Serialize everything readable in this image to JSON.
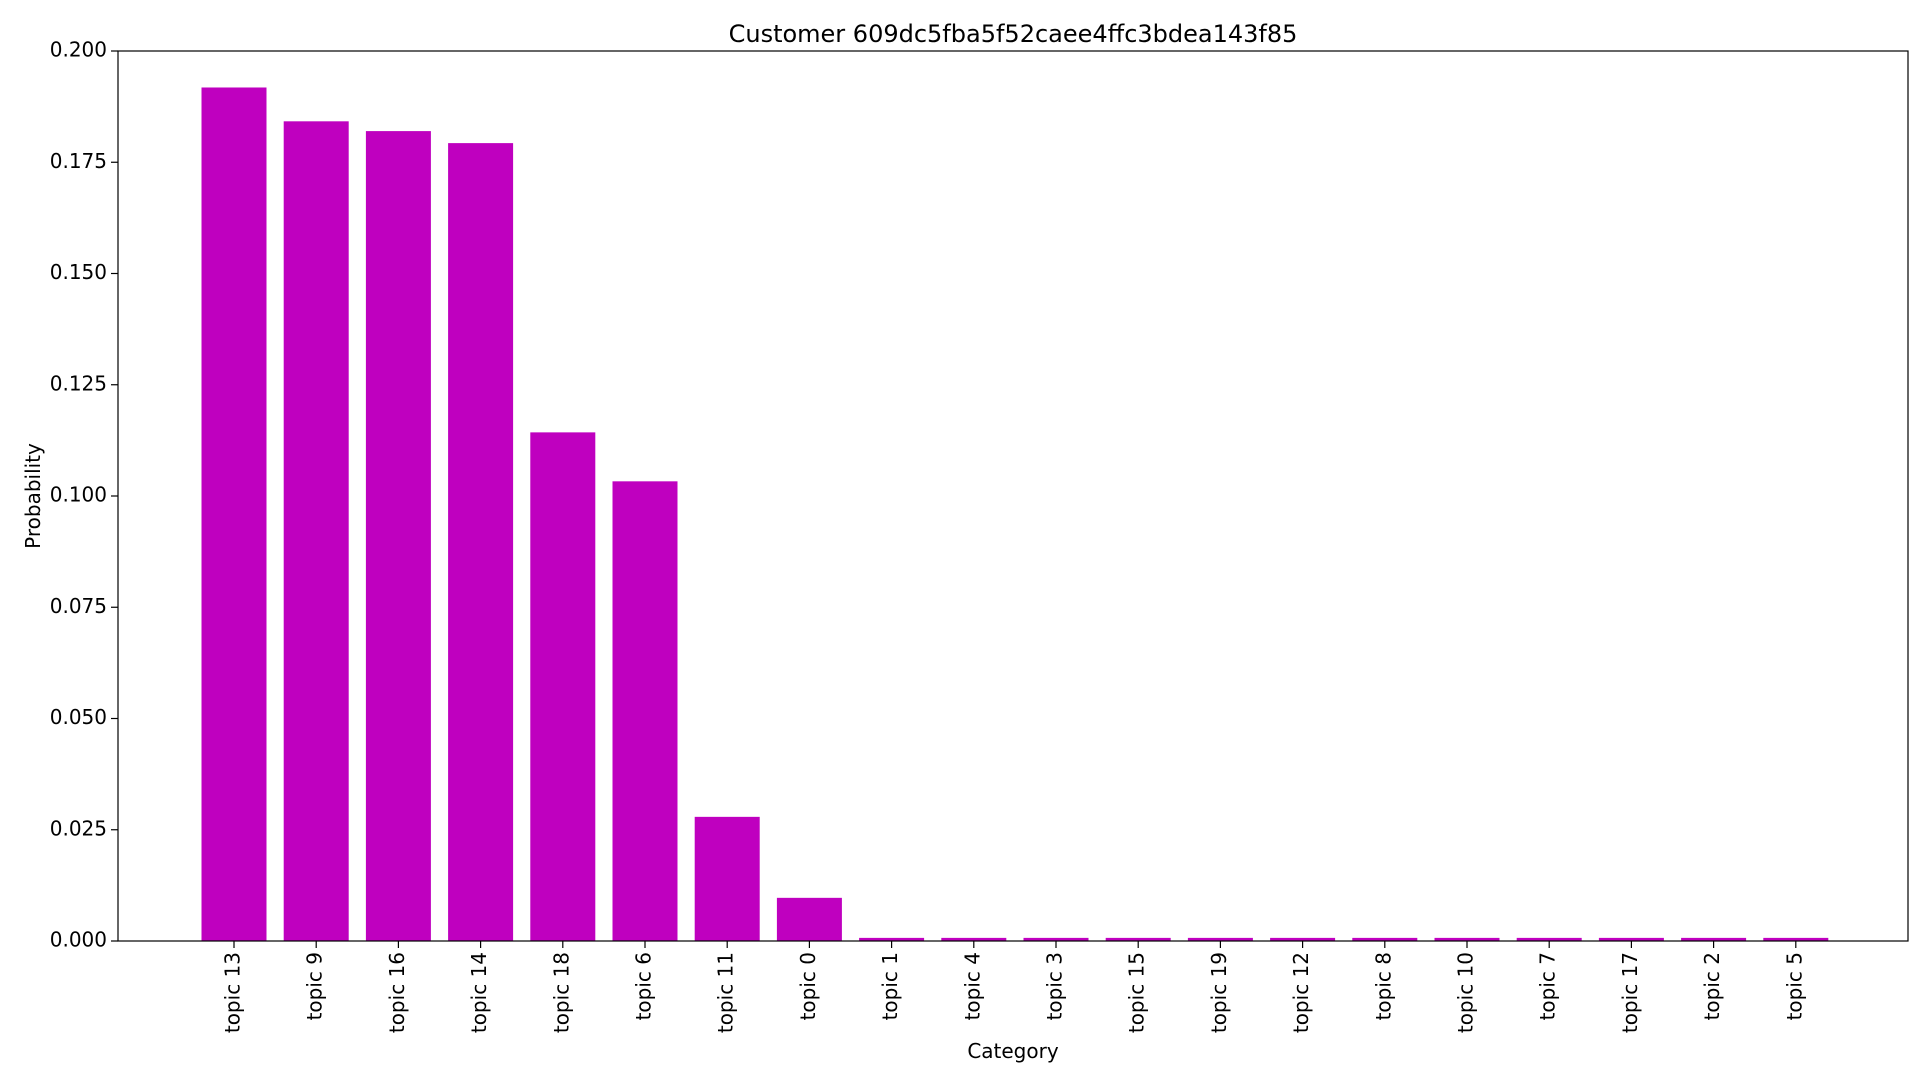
{
  "chart_data": {
    "type": "bar",
    "title": "Customer 609dc5fba5f52caee4ffc3bdea143f85",
    "xlabel": "Category",
    "ylabel": "Probability",
    "ylim": [
      0,
      0.2
    ],
    "yticks": [
      "0.000",
      "0.025",
      "0.050",
      "0.075",
      "0.100",
      "0.125",
      "0.150",
      "0.175",
      "0.200"
    ],
    "ytick_values": [
      0,
      0.025,
      0.05,
      0.075,
      0.1,
      0.125,
      0.15,
      0.175,
      0.2
    ],
    "categories": [
      "topic 13",
      "topic 9",
      "topic 16",
      "topic 14",
      "topic 18",
      "topic 6",
      "topic 11",
      "topic 0",
      "topic 1",
      "topic 4",
      "topic 3",
      "topic 15",
      "topic 19",
      "topic 12",
      "topic 8",
      "topic 10",
      "topic 7",
      "topic 17",
      "topic 2",
      "topic 5"
    ],
    "values": [
      0.1918,
      0.1842,
      0.182,
      0.1793,
      0.1143,
      0.1033,
      0.0279,
      0.0097,
      0.0007,
      0.0007,
      0.0007,
      0.0007,
      0.0007,
      0.0007,
      0.0007,
      0.0007,
      0.0007,
      0.0007,
      0.0007,
      0.0007
    ],
    "bar_color": "#bf00bf",
    "grid": false,
    "legend": "none"
  }
}
